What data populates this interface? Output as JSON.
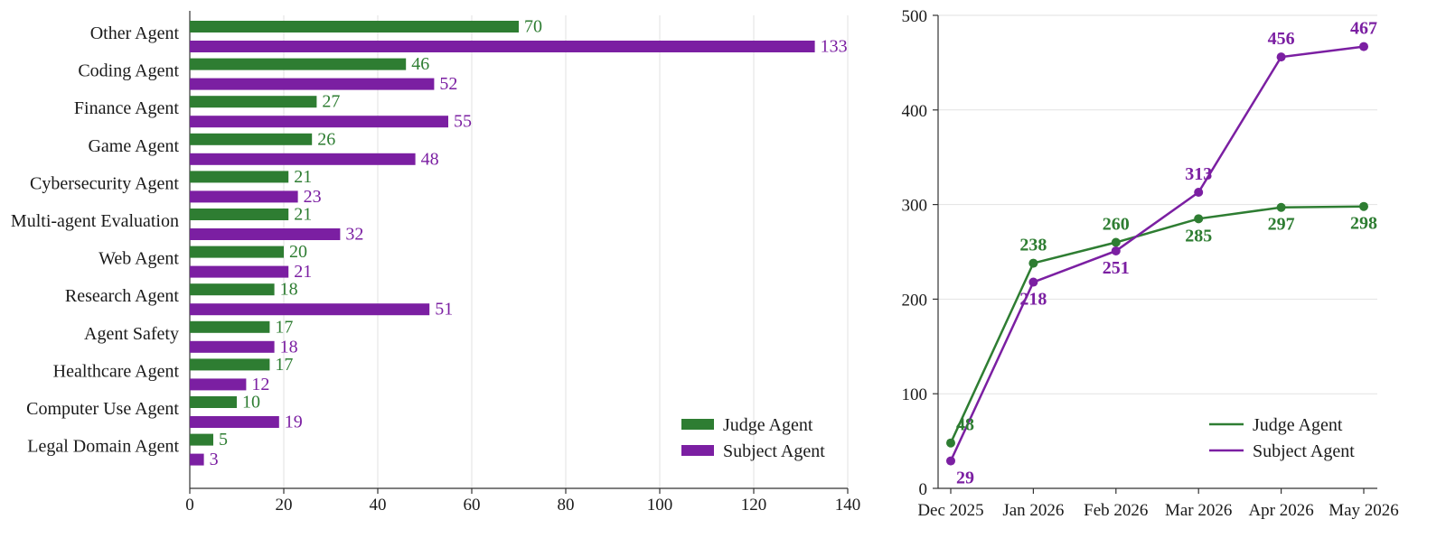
{
  "colors": {
    "judge": "#2e7d32",
    "subject": "#7b1fa2"
  },
  "chart_data": [
    {
      "type": "bar",
      "orientation": "horizontal",
      "categories": [
        "Other Agent",
        "Coding Agent",
        "Finance Agent",
        "Game Agent",
        "Cybersecurity Agent",
        "Multi-agent Evaluation",
        "Web Agent",
        "Research Agent",
        "Agent Safety",
        "Healthcare Agent",
        "Computer Use Agent",
        "Legal Domain Agent"
      ],
      "series": [
        {
          "name": "Judge Agent",
          "values": [
            70,
            46,
            27,
            26,
            21,
            21,
            20,
            18,
            17,
            17,
            10,
            5
          ]
        },
        {
          "name": "Subject Agent",
          "values": [
            133,
            52,
            55,
            48,
            23,
            32,
            21,
            51,
            18,
            12,
            19,
            3
          ]
        }
      ],
      "xlim": [
        0,
        140
      ],
      "xticks": [
        0,
        20,
        40,
        60,
        80,
        100,
        120,
        140
      ],
      "grid": true,
      "legend": "bottom-right"
    },
    {
      "type": "line",
      "x": [
        "Dec 2025",
        "Jan 2026",
        "Feb 2026",
        "Mar 2026",
        "Apr 2026",
        "May 2026"
      ],
      "series": [
        {
          "name": "Judge Agent",
          "values": [
            48,
            238,
            260,
            285,
            297,
            298
          ]
        },
        {
          "name": "Subject Agent",
          "values": [
            29,
            218,
            251,
            313,
            456,
            467
          ]
        }
      ],
      "ylim": [
        0,
        500
      ],
      "yticks": [
        0,
        100,
        200,
        300,
        400,
        500
      ],
      "grid": true,
      "legend": "bottom-right"
    }
  ]
}
